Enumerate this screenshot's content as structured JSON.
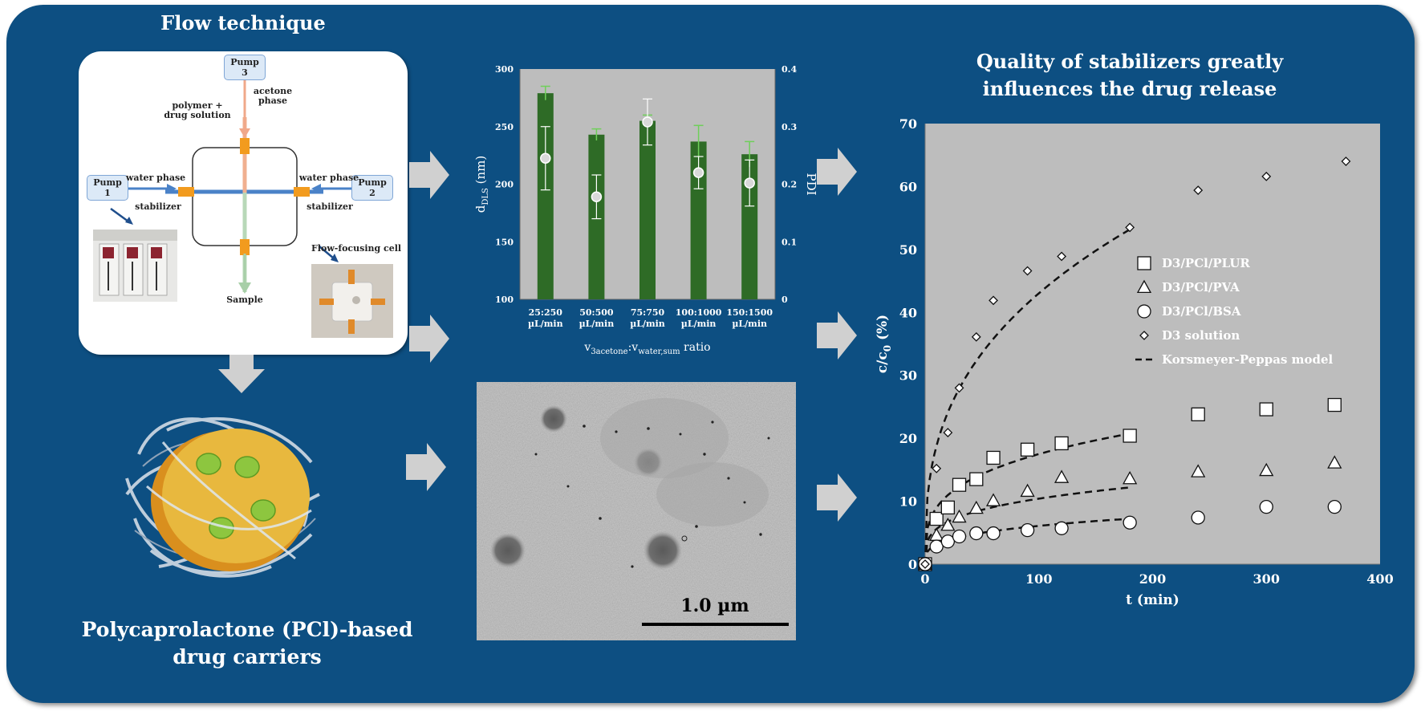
{
  "titles": {
    "flow": "Flow technique",
    "carriers_line1": "Polycaprolactone (PCl)-based",
    "carriers_line2": "drug carriers",
    "release_line1": "Quality of stabilizers greatly",
    "release_line2": "influences the drug release"
  },
  "diagram": {
    "pump3_line1": "Pump",
    "pump3_line2": "3",
    "pump1_line1": "Pump",
    "pump1_line2": "1",
    "pump2_line1": "Pump",
    "pump2_line2": "2",
    "polymer_line1": "polymer +",
    "polymer_line2": "drug solution",
    "acetone_line1": "acetone",
    "acetone_line2": "phase",
    "water_left": "water phase",
    "water_right": "water phase",
    "stabilizer_left": "stabilizer",
    "stabilizer_right": "stabilizer",
    "cell_label": "Flow-focusing cell",
    "sample": "Sample"
  },
  "tem": {
    "scale_label": "1.0 µm"
  },
  "colors": {
    "background": "#0d4f82",
    "bar": "#2e6b26",
    "chart_bg": "#bdbdbd",
    "arrow": "#d0d0d0",
    "carrier_core": "#e6b43a",
    "drug": "#8dc63f"
  },
  "chart_data": [
    {
      "type": "bar",
      "categories_line1": [
        "25:250",
        "50:500",
        "75:750",
        "100:1000",
        "150:1500"
      ],
      "categories_line2": [
        "µL/min",
        "µL/min",
        "µL/min",
        "µL/min",
        "µL/min"
      ],
      "series": [
        {
          "name": "dDLS",
          "axis": "left",
          "values": [
            279,
            243,
            255,
            237,
            226
          ],
          "errors": [
            6,
            5,
            5,
            14,
            11
          ]
        },
        {
          "name": "PDI",
          "axis": "right",
          "values": [
            0.245,
            0.178,
            0.308,
            0.22,
            0.202
          ],
          "errors": [
            0.055,
            0.038,
            0.04,
            0.028,
            0.04
          ]
        }
      ],
      "ylabel_main": "d",
      "ylabel_sub": "DLS",
      "ylabel_unit": " (nm)",
      "ylim": [
        100,
        300
      ],
      "yticks": [
        "100",
        "150",
        "200",
        "250",
        "300"
      ],
      "y2label": "PDI",
      "y2lim": [
        0,
        0.4
      ],
      "y2ticks": [
        "0",
        "0.1",
        "0.2",
        "0.3",
        "0.4"
      ],
      "xlabel_v1": "v",
      "xlabel_sub1": "3acetone",
      "xlabel_sep": ":v",
      "xlabel_sub2": "water,sum",
      "xlabel_tail": " ratio"
    },
    {
      "type": "scatter",
      "xlabel": "t (min)",
      "ylabel_main": "c/c",
      "ylabel_sub": "0",
      "ylabel_unit": " (%)",
      "xlim": [
        0,
        400
      ],
      "ylim": [
        0,
        70
      ],
      "xticks": [
        "0",
        "100",
        "200",
        "300",
        "400"
      ],
      "yticks": [
        "0",
        "10",
        "20",
        "30",
        "40",
        "50",
        "60",
        "70"
      ],
      "series": [
        {
          "name": "D3/PCl/PLUR",
          "marker": "square",
          "points": [
            [
              0,
              0
            ],
            [
              10,
              7.2
            ],
            [
              20,
              9
            ],
            [
              30,
              12.6
            ],
            [
              45,
              13.5
            ],
            [
              60,
              16.9
            ],
            [
              90,
              18.2
            ],
            [
              120,
              19.2
            ],
            [
              180,
              20.4
            ],
            [
              240,
              23.8
            ],
            [
              300,
              24.6
            ],
            [
              360,
              25.3
            ]
          ]
        },
        {
          "name": "D3/PCl/PVA",
          "marker": "triangle",
          "points": [
            [
              0,
              0
            ],
            [
              10,
              4.6
            ],
            [
              20,
              6.2
            ],
            [
              30,
              7.5
            ],
            [
              45,
              8.9
            ],
            [
              60,
              10.1
            ],
            [
              90,
              11.6
            ],
            [
              120,
              13.8
            ],
            [
              180,
              13.6
            ],
            [
              240,
              14.7
            ],
            [
              300,
              14.9
            ],
            [
              360,
              16.1
            ]
          ]
        },
        {
          "name": "D3/PCl/BSA",
          "marker": "circle",
          "points": [
            [
              0,
              0
            ],
            [
              10,
              2.8
            ],
            [
              20,
              3.6
            ],
            [
              30,
              4.4
            ],
            [
              45,
              4.9
            ],
            [
              60,
              4.9
            ],
            [
              90,
              5.4
            ],
            [
              120,
              5.7
            ],
            [
              180,
              6.6
            ],
            [
              240,
              7.4
            ],
            [
              300,
              9.1
            ],
            [
              360,
              9.1
            ]
          ]
        },
        {
          "name": "D3 solution",
          "marker": "diamond",
          "points": [
            [
              0,
              0
            ],
            [
              10,
              15.2
            ],
            [
              20,
              20.9
            ],
            [
              30,
              28
            ],
            [
              45,
              36.1
            ],
            [
              60,
              41.9
            ],
            [
              90,
              46.6
            ],
            [
              120,
              48.9
            ],
            [
              180,
              53.5
            ],
            [
              240,
              59.4
            ],
            [
              300,
              61.6
            ],
            [
              370,
              64
            ]
          ]
        }
      ],
      "fit_curves": [
        {
          "k": 8.2,
          "n": 0.36,
          "tmax": 180
        },
        {
          "k": 4.6,
          "n": 0.29,
          "tmax": 180
        },
        {
          "k": 3.0,
          "n": 0.27,
          "tmax": 180
        },
        {
          "k": 1.6,
          "n": 0.29,
          "tmax": 180
        }
      ],
      "fit_name": "Korsmeyer-Peppas model"
    }
  ]
}
